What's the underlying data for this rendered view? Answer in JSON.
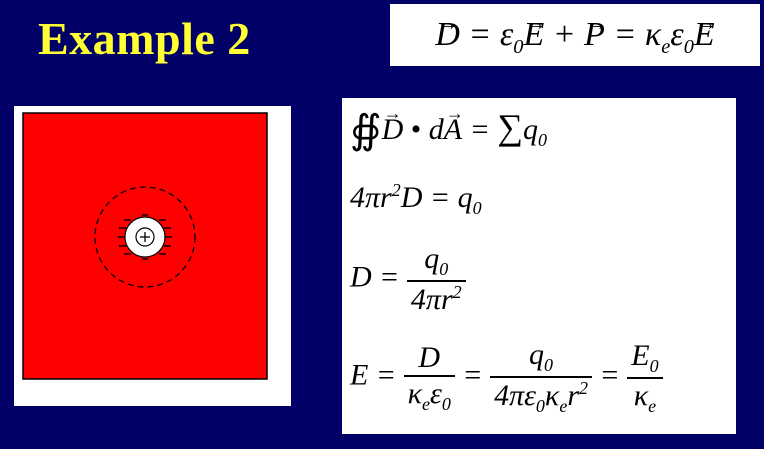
{
  "slide": {
    "title": "Example 2",
    "background_color": "#000066",
    "title_color": "#ffff33"
  },
  "figure": {
    "dielectric_color": "#ff0000",
    "center_charge_symbol": "+",
    "bound_charge_symbol": "−"
  },
  "equations": {
    "constitutive": "D = ε0E + P = κeε0E",
    "gauss_law": "∯ D • dA = ∑ q0",
    "surface_eval": "4πr²D = q0",
    "d_field": "D = q0 / 4πr²",
    "e_field": "E = D / κeε0 = q0 / 4πε0κer² = E0 / κe"
  }
}
